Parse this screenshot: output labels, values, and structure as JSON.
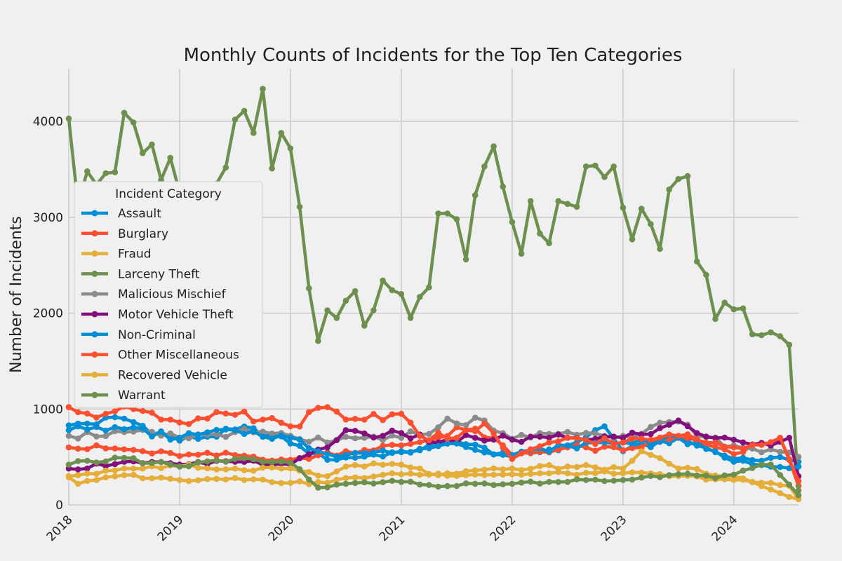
{
  "chart_data": {
    "type": "line",
    "title": "Monthly Counts of Incidents for the Top Ten Categories",
    "xlabel": "",
    "ylabel": "Number of Incidents",
    "x_start": "2018-01",
    "x_end": "2024-08",
    "x_ticks": [
      "2018",
      "2019",
      "2020",
      "2021",
      "2022",
      "2023",
      "2024"
    ],
    "y_ticks": [
      "0",
      "1000",
      "2000",
      "3000",
      "4000"
    ],
    "ylim": [
      0,
      4550
    ],
    "grid": true,
    "legend": {
      "title": "Incident Category",
      "position": "left"
    },
    "series": [
      {
        "name": "Assault",
        "color": "#008fd5",
        "anchors": [
          [
            0,
            830
          ],
          [
            6,
            900
          ],
          [
            12,
            670
          ],
          [
            20,
            800
          ],
          [
            24,
            640
          ],
          [
            28,
            470
          ],
          [
            36,
            550
          ],
          [
            42,
            660
          ],
          [
            48,
            500
          ],
          [
            54,
            620
          ],
          [
            58,
            820
          ],
          [
            60,
            560
          ],
          [
            66,
            700
          ],
          [
            72,
            480
          ],
          [
            78,
            470
          ],
          [
            79,
            450
          ]
        ]
      },
      {
        "name": "Burglary",
        "color": "#fc4f30",
        "anchors": [
          [
            0,
            600
          ],
          [
            6,
            580
          ],
          [
            12,
            510
          ],
          [
            18,
            520
          ],
          [
            24,
            470
          ],
          [
            30,
            560
          ],
          [
            36,
            620
          ],
          [
            40,
            700
          ],
          [
            42,
            810
          ],
          [
            46,
            700
          ],
          [
            48,
            520
          ],
          [
            54,
            600
          ],
          [
            60,
            570
          ],
          [
            66,
            710
          ],
          [
            72,
            530
          ],
          [
            77,
            700
          ],
          [
            79,
            200
          ]
        ]
      },
      {
        "name": "Fraud",
        "color": "#e5ae38",
        "anchors": [
          [
            0,
            290
          ],
          [
            1,
            220
          ],
          [
            6,
            310
          ],
          [
            12,
            260
          ],
          [
            18,
            280
          ],
          [
            24,
            230
          ],
          [
            28,
            230
          ],
          [
            30,
            280
          ],
          [
            36,
            320
          ],
          [
            48,
            320
          ],
          [
            54,
            330
          ],
          [
            60,
            330
          ],
          [
            66,
            300
          ],
          [
            72,
            260
          ],
          [
            78,
            200
          ],
          [
            79,
            60
          ]
        ]
      },
      {
        "name": "Larceny Theft",
        "color": "#6d904f",
        "anchors": [
          [
            0,
            4030
          ],
          [
            1,
            3130
          ],
          [
            2,
            3480
          ],
          [
            3,
            3340
          ],
          [
            4,
            3460
          ],
          [
            5,
            3470
          ],
          [
            6,
            4090
          ],
          [
            7,
            3990
          ],
          [
            8,
            3670
          ],
          [
            9,
            3760
          ],
          [
            10,
            3390
          ],
          [
            11,
            3620
          ],
          [
            12,
            3260
          ],
          [
            13,
            3020
          ],
          [
            14,
            3110
          ],
          [
            15,
            3110
          ],
          [
            16,
            3350
          ],
          [
            17,
            3520
          ],
          [
            18,
            4020
          ],
          [
            19,
            4110
          ],
          [
            20,
            3880
          ],
          [
            21,
            4340
          ],
          [
            22,
            3510
          ],
          [
            23,
            3880
          ],
          [
            24,
            3720
          ],
          [
            25,
            3110
          ],
          [
            26,
            2260
          ],
          [
            27,
            1710
          ],
          [
            28,
            2030
          ],
          [
            29,
            1950
          ],
          [
            30,
            2130
          ],
          [
            31,
            2230
          ],
          [
            32,
            1870
          ],
          [
            33,
            2030
          ],
          [
            34,
            2340
          ],
          [
            35,
            2240
          ],
          [
            36,
            2200
          ],
          [
            37,
            1950
          ],
          [
            38,
            2170
          ],
          [
            39,
            2270
          ],
          [
            40,
            3040
          ],
          [
            41,
            3040
          ],
          [
            42,
            2980
          ],
          [
            43,
            2560
          ],
          [
            44,
            3230
          ],
          [
            45,
            3530
          ],
          [
            46,
            3740
          ],
          [
            47,
            3320
          ],
          [
            48,
            2950
          ],
          [
            49,
            2620
          ],
          [
            50,
            3170
          ],
          [
            51,
            2830
          ],
          [
            52,
            2730
          ],
          [
            53,
            3170
          ],
          [
            54,
            3140
          ],
          [
            55,
            3110
          ],
          [
            56,
            3530
          ],
          [
            57,
            3540
          ],
          [
            58,
            3420
          ],
          [
            59,
            3530
          ],
          [
            60,
            3100
          ],
          [
            61,
            2770
          ],
          [
            62,
            3090
          ],
          [
            63,
            2930
          ],
          [
            64,
            2670
          ],
          [
            65,
            3290
          ],
          [
            66,
            3400
          ],
          [
            67,
            3430
          ],
          [
            68,
            2540
          ],
          [
            69,
            2400
          ],
          [
            70,
            1940
          ],
          [
            71,
            2110
          ],
          [
            72,
            2040
          ],
          [
            73,
            2050
          ],
          [
            74,
            1780
          ],
          [
            75,
            1770
          ],
          [
            76,
            1800
          ],
          [
            77,
            1760
          ],
          [
            78,
            1670
          ],
          [
            79,
            150
          ]
        ]
      },
      {
        "name": "Malicious Mischief",
        "color": "#8b8b8b",
        "anchors": [
          [
            0,
            720
          ],
          [
            6,
            760
          ],
          [
            12,
            700
          ],
          [
            18,
            760
          ],
          [
            24,
            720
          ],
          [
            28,
            650
          ],
          [
            32,
            700
          ],
          [
            36,
            700
          ],
          [
            40,
            810
          ],
          [
            41,
            900
          ],
          [
            42,
            850
          ],
          [
            45,
            880
          ],
          [
            48,
            690
          ],
          [
            52,
            740
          ],
          [
            54,
            760
          ],
          [
            58,
            720
          ],
          [
            60,
            720
          ],
          [
            66,
            870
          ],
          [
            68,
            720
          ],
          [
            72,
            620
          ],
          [
            79,
            500
          ]
        ]
      },
      {
        "name": "Motor Vehicle Theft",
        "color": "#810f7c",
        "anchors": [
          [
            0,
            380
          ],
          [
            6,
            450
          ],
          [
            12,
            420
          ],
          [
            18,
            450
          ],
          [
            24,
            420
          ],
          [
            28,
            600
          ],
          [
            30,
            780
          ],
          [
            34,
            720
          ],
          [
            36,
            750
          ],
          [
            40,
            650
          ],
          [
            44,
            700
          ],
          [
            48,
            680
          ],
          [
            54,
            700
          ],
          [
            60,
            700
          ],
          [
            64,
            800
          ],
          [
            66,
            880
          ],
          [
            68,
            750
          ],
          [
            72,
            680
          ],
          [
            76,
            620
          ],
          [
            78,
            700
          ],
          [
            79,
            300
          ]
        ]
      },
      {
        "name": "Non-Criminal",
        "color": "#008fd5",
        "anchors": [
          [
            0,
            780
          ],
          [
            6,
            790
          ],
          [
            12,
            700
          ],
          [
            18,
            780
          ],
          [
            24,
            700
          ],
          [
            28,
            530
          ],
          [
            36,
            560
          ],
          [
            42,
            640
          ],
          [
            48,
            520
          ],
          [
            54,
            620
          ],
          [
            60,
            650
          ],
          [
            66,
            700
          ],
          [
            72,
            450
          ],
          [
            79,
            400
          ]
        ]
      },
      {
        "name": "Other Miscellaneous",
        "color": "#fc4f30",
        "anchors": [
          [
            0,
            1020
          ],
          [
            4,
            950
          ],
          [
            7,
            1000
          ],
          [
            8,
            980
          ],
          [
            12,
            860
          ],
          [
            18,
            940
          ],
          [
            24,
            820
          ],
          [
            28,
            1020
          ],
          [
            30,
            890
          ],
          [
            36,
            950
          ],
          [
            38,
            720
          ],
          [
            42,
            700
          ],
          [
            45,
            850
          ],
          [
            48,
            480
          ],
          [
            54,
            700
          ],
          [
            60,
            650
          ],
          [
            66,
            720
          ],
          [
            72,
            600
          ],
          [
            77,
            700
          ],
          [
            79,
            250
          ]
        ]
      },
      {
        "name": "Recovered Vehicle",
        "color": "#e5ae38",
        "anchors": [
          [
            0,
            300
          ],
          [
            6,
            380
          ],
          [
            12,
            400
          ],
          [
            18,
            380
          ],
          [
            24,
            380
          ],
          [
            28,
            300
          ],
          [
            30,
            400
          ],
          [
            36,
            420
          ],
          [
            40,
            310
          ],
          [
            48,
            380
          ],
          [
            54,
            400
          ],
          [
            60,
            380
          ],
          [
            62,
            560
          ],
          [
            66,
            380
          ],
          [
            72,
            300
          ],
          [
            79,
            60
          ]
        ]
      },
      {
        "name": "Warrant",
        "color": "#6d904f",
        "anchors": [
          [
            0,
            420
          ],
          [
            6,
            490
          ],
          [
            12,
            400
          ],
          [
            18,
            480
          ],
          [
            24,
            440
          ],
          [
            27,
            180
          ],
          [
            30,
            220
          ],
          [
            36,
            240
          ],
          [
            40,
            190
          ],
          [
            44,
            220
          ],
          [
            48,
            220
          ],
          [
            52,
            240
          ],
          [
            56,
            260
          ],
          [
            60,
            260
          ],
          [
            66,
            320
          ],
          [
            70,
            280
          ],
          [
            76,
            420
          ],
          [
            79,
            100
          ]
        ]
      }
    ]
  }
}
